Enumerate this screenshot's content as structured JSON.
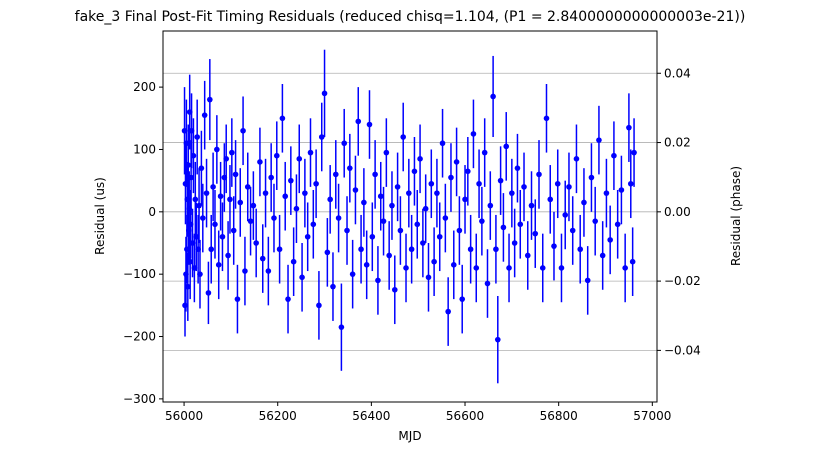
{
  "chart_data": {
    "type": "scatter",
    "title": "fake_3 Final Post-Fit Timing Residuals (reduced chisq=1.104, (P1 = 2.8400000000000003e-21))",
    "xlabel": "MJD",
    "ylabel": "Residual (us)",
    "ylabel_right": "Residual (phase)",
    "xlim": [
      55955,
      57010
    ],
    "ylim": [
      -305,
      290
    ],
    "ylim_right": [
      -0.0549,
      0.0522
    ],
    "xticks": [
      56000,
      56200,
      56400,
      56600,
      56800,
      57000
    ],
    "yticks": [
      -300,
      -200,
      -100,
      0,
      100,
      200
    ],
    "yticks_right": [
      -0.04,
      -0.02,
      0.0,
      0.02,
      0.04
    ],
    "yticks_right_labels": [
      "−0.04",
      "−0.02",
      "0.00",
      "0.02",
      "0.04"
    ],
    "yticks_labels": [
      "−300",
      "−200",
      "−100",
      "0",
      "100",
      "200"
    ],
    "grid": "horizontal at right-axis ticks",
    "marker_color": "#0000ff",
    "series": [
      {
        "points": [
          {
            "x": 56001,
            "y": 130,
            "err": 70
          },
          {
            "x": 56002,
            "y": -150,
            "err": 50
          },
          {
            "x": 56003,
            "y": 45,
            "err": 65
          },
          {
            "x": 56004,
            "y": -100,
            "err": 60
          },
          {
            "x": 56005,
            "y": 110,
            "err": 70
          },
          {
            "x": 56006,
            "y": -60,
            "err": 55
          },
          {
            "x": 56007,
            "y": 20,
            "err": 60
          },
          {
            "x": 56008,
            "y": -120,
            "err": 55
          },
          {
            "x": 56009,
            "y": 75,
            "err": 65
          },
          {
            "x": 56010,
            "y": -30,
            "err": 55
          },
          {
            "x": 56011,
            "y": 5,
            "err": 60
          },
          {
            "x": 56012,
            "y": 160,
            "err": 60
          },
          {
            "x": 56013,
            "y": -80,
            "err": 60
          },
          {
            "x": 56014,
            "y": -20,
            "err": 55
          },
          {
            "x": 56015,
            "y": 55,
            "err": 60
          },
          {
            "x": 56016,
            "y": 130,
            "err": 60
          },
          {
            "x": 56018,
            "y": -50,
            "err": 55
          },
          {
            "x": 56020,
            "y": 90,
            "err": 60
          },
          {
            "x": 56022,
            "y": -90,
            "err": 55
          },
          {
            "x": 56024,
            "y": 20,
            "err": 60
          },
          {
            "x": 56026,
            "y": -40,
            "err": 55
          },
          {
            "x": 56028,
            "y": 120,
            "err": 60
          },
          {
            "x": 56030,
            "y": -60,
            "err": 55
          },
          {
            "x": 56032,
            "y": 10,
            "err": 60
          },
          {
            "x": 56034,
            "y": -100,
            "err": 55
          },
          {
            "x": 56037,
            "y": 70,
            "err": 60
          },
          {
            "x": 56040,
            "y": -10,
            "err": 55
          },
          {
            "x": 56044,
            "y": 155,
            "err": 55
          },
          {
            "x": 56048,
            "y": 30,
            "err": 55
          },
          {
            "x": 56052,
            "y": -130,
            "err": 50
          },
          {
            "x": 56055,
            "y": 180,
            "err": 65
          },
          {
            "x": 56058,
            "y": -60,
            "err": 55
          },
          {
            "x": 56062,
            "y": 40,
            "err": 55
          },
          {
            "x": 56066,
            "y": -20,
            "err": 55
          },
          {
            "x": 56070,
            "y": 100,
            "err": 55
          },
          {
            "x": 56074,
            "y": -85,
            "err": 55
          },
          {
            "x": 56078,
            "y": 25,
            "err": 55
          },
          {
            "x": 56082,
            "y": -40,
            "err": 55
          },
          {
            "x": 56086,
            "y": 55,
            "err": 55
          },
          {
            "x": 56090,
            "y": 85,
            "err": 55
          },
          {
            "x": 56094,
            "y": -70,
            "err": 55
          },
          {
            "x": 56098,
            "y": 20,
            "err": 55
          },
          {
            "x": 56102,
            "y": 95,
            "err": 55
          },
          {
            "x": 56106,
            "y": -30,
            "err": 55
          },
          {
            "x": 56110,
            "y": 60,
            "err": 55
          },
          {
            "x": 56114,
            "y": -140,
            "err": 55
          },
          {
            "x": 56120,
            "y": 15,
            "err": 55
          },
          {
            "x": 56126,
            "y": 130,
            "err": 55
          },
          {
            "x": 56130,
            "y": -95,
            "err": 55
          },
          {
            "x": 56136,
            "y": 40,
            "err": 55
          },
          {
            "x": 56142,
            "y": -15,
            "err": 55
          },
          {
            "x": 56148,
            "y": 10,
            "err": 55
          },
          {
            "x": 56154,
            "y": -50,
            "err": 55
          },
          {
            "x": 56162,
            "y": 80,
            "err": 55
          },
          {
            "x": 56168,
            "y": -75,
            "err": 55
          },
          {
            "x": 56174,
            "y": 30,
            "err": 55
          },
          {
            "x": 56180,
            "y": -95,
            "err": 55
          },
          {
            "x": 56186,
            "y": 55,
            "err": 55
          },
          {
            "x": 56192,
            "y": -10,
            "err": 55
          },
          {
            "x": 56198,
            "y": 90,
            "err": 55
          },
          {
            "x": 56204,
            "y": -60,
            "err": 55
          },
          {
            "x": 56210,
            "y": 150,
            "err": 55
          },
          {
            "x": 56216,
            "y": 25,
            "err": 55
          },
          {
            "x": 56222,
            "y": -140,
            "err": 55
          },
          {
            "x": 56228,
            "y": 50,
            "err": 55
          },
          {
            "x": 56234,
            "y": -80,
            "err": 55
          },
          {
            "x": 56240,
            "y": 5,
            "err": 55
          },
          {
            "x": 56246,
            "y": 85,
            "err": 55
          },
          {
            "x": 56252,
            "y": -105,
            "err": 55
          },
          {
            "x": 56258,
            "y": 30,
            "err": 55
          },
          {
            "x": 56264,
            "y": -40,
            "err": 55
          },
          {
            "x": 56270,
            "y": 95,
            "err": 55
          },
          {
            "x": 56276,
            "y": -20,
            "err": 55
          },
          {
            "x": 56282,
            "y": 45,
            "err": 55
          },
          {
            "x": 56288,
            "y": -150,
            "err": 55
          },
          {
            "x": 56294,
            "y": 120,
            "err": 55
          },
          {
            "x": 56300,
            "y": 190,
            "err": 70
          },
          {
            "x": 56306,
            "y": -65,
            "err": 55
          },
          {
            "x": 56312,
            "y": 20,
            "err": 55
          },
          {
            "x": 56318,
            "y": -120,
            "err": 55
          },
          {
            "x": 56324,
            "y": 60,
            "err": 55
          },
          {
            "x": 56330,
            "y": -10,
            "err": 55
          },
          {
            "x": 56336,
            "y": -185,
            "err": 70
          },
          {
            "x": 56342,
            "y": 110,
            "err": 55
          },
          {
            "x": 56348,
            "y": -30,
            "err": 55
          },
          {
            "x": 56354,
            "y": 70,
            "err": 55
          },
          {
            "x": 56360,
            "y": -100,
            "err": 55
          },
          {
            "x": 56366,
            "y": 35,
            "err": 55
          },
          {
            "x": 56372,
            "y": 145,
            "err": 55
          },
          {
            "x": 56378,
            "y": -60,
            "err": 55
          },
          {
            "x": 56384,
            "y": 15,
            "err": 55
          },
          {
            "x": 56390,
            "y": -85,
            "err": 55
          },
          {
            "x": 56396,
            "y": 140,
            "err": 55
          },
          {
            "x": 56402,
            "y": -40,
            "err": 55
          },
          {
            "x": 56408,
            "y": 60,
            "err": 55
          },
          {
            "x": 56414,
            "y": -110,
            "err": 55
          },
          {
            "x": 56420,
            "y": 25,
            "err": 55
          },
          {
            "x": 56426,
            "y": -15,
            "err": 55
          },
          {
            "x": 56432,
            "y": 95,
            "err": 55
          },
          {
            "x": 56438,
            "y": -70,
            "err": 55
          },
          {
            "x": 56444,
            "y": 10,
            "err": 55
          },
          {
            "x": 56450,
            "y": -125,
            "err": 55
          },
          {
            "x": 56456,
            "y": 40,
            "err": 55
          },
          {
            "x": 56462,
            "y": -30,
            "err": 55
          },
          {
            "x": 56468,
            "y": 120,
            "err": 55
          },
          {
            "x": 56474,
            "y": -90,
            "err": 55
          },
          {
            "x": 56480,
            "y": 30,
            "err": 55
          },
          {
            "x": 56486,
            "y": -60,
            "err": 55
          },
          {
            "x": 56492,
            "y": 65,
            "err": 55
          },
          {
            "x": 56498,
            "y": -20,
            "err": 55
          },
          {
            "x": 56504,
            "y": 85,
            "err": 55
          },
          {
            "x": 56510,
            "y": -50,
            "err": 55
          },
          {
            "x": 56516,
            "y": 5,
            "err": 55
          },
          {
            "x": 56522,
            "y": -105,
            "err": 55
          },
          {
            "x": 56528,
            "y": 45,
            "err": 55
          },
          {
            "x": 56534,
            "y": -80,
            "err": 55
          },
          {
            "x": 56540,
            "y": 30,
            "err": 55
          },
          {
            "x": 56546,
            "y": -40,
            "err": 55
          },
          {
            "x": 56552,
            "y": 110,
            "err": 55
          },
          {
            "x": 56558,
            "y": -10,
            "err": 55
          },
          {
            "x": 56564,
            "y": -160,
            "err": 55
          },
          {
            "x": 56570,
            "y": 55,
            "err": 55
          },
          {
            "x": 56576,
            "y": -85,
            "err": 55
          },
          {
            "x": 56582,
            "y": 80,
            "err": 55
          },
          {
            "x": 56588,
            "y": -30,
            "err": 55
          },
          {
            "x": 56594,
            "y": -140,
            "err": 55
          },
          {
            "x": 56600,
            "y": 20,
            "err": 55
          },
          {
            "x": 56606,
            "y": 65,
            "err": 55
          },
          {
            "x": 56612,
            "y": -60,
            "err": 55
          },
          {
            "x": 56618,
            "y": 125,
            "err": 55
          },
          {
            "x": 56624,
            "y": -90,
            "err": 55
          },
          {
            "x": 56630,
            "y": 45,
            "err": 55
          },
          {
            "x": 56636,
            "y": -15,
            "err": 55
          },
          {
            "x": 56642,
            "y": 95,
            "err": 55
          },
          {
            "x": 56648,
            "y": -115,
            "err": 55
          },
          {
            "x": 56654,
            "y": 10,
            "err": 55
          },
          {
            "x": 56660,
            "y": 185,
            "err": 65
          },
          {
            "x": 56666,
            "y": -60,
            "err": 55
          },
          {
            "x": 56670,
            "y": -205,
            "err": 70
          },
          {
            "x": 56676,
            "y": 50,
            "err": 55
          },
          {
            "x": 56682,
            "y": -25,
            "err": 55
          },
          {
            "x": 56688,
            "y": 105,
            "err": 55
          },
          {
            "x": 56694,
            "y": -90,
            "err": 55
          },
          {
            "x": 56700,
            "y": 30,
            "err": 55
          },
          {
            "x": 56706,
            "y": -50,
            "err": 55
          },
          {
            "x": 56712,
            "y": 70,
            "err": 55
          },
          {
            "x": 56718,
            "y": -20,
            "err": 55
          },
          {
            "x": 56726,
            "y": 40,
            "err": 55
          },
          {
            "x": 56734,
            "y": -70,
            "err": 55
          },
          {
            "x": 56742,
            "y": 10,
            "err": 55
          },
          {
            "x": 56750,
            "y": -35,
            "err": 55
          },
          {
            "x": 56758,
            "y": 60,
            "err": 55
          },
          {
            "x": 56766,
            "y": -90,
            "err": 55
          },
          {
            "x": 56774,
            "y": 150,
            "err": 55
          },
          {
            "x": 56782,
            "y": 20,
            "err": 55
          },
          {
            "x": 56790,
            "y": -55,
            "err": 55
          },
          {
            "x": 56798,
            "y": 45,
            "err": 55
          },
          {
            "x": 56806,
            "y": -90,
            "err": 55
          },
          {
            "x": 56814,
            "y": -5,
            "err": 55
          },
          {
            "x": 56822,
            "y": 40,
            "err": 55
          },
          {
            "x": 56830,
            "y": -30,
            "err": 55
          },
          {
            "x": 56838,
            "y": 85,
            "err": 55
          },
          {
            "x": 56846,
            "y": -60,
            "err": 55
          },
          {
            "x": 56854,
            "y": 15,
            "err": 55
          },
          {
            "x": 56862,
            "y": -110,
            "err": 55
          },
          {
            "x": 56870,
            "y": 55,
            "err": 55
          },
          {
            "x": 56878,
            "y": -15,
            "err": 55
          },
          {
            "x": 56886,
            "y": 115,
            "err": 55
          },
          {
            "x": 56894,
            "y": -70,
            "err": 55
          },
          {
            "x": 56902,
            "y": 30,
            "err": 55
          },
          {
            "x": 56910,
            "y": -45,
            "err": 55
          },
          {
            "x": 56918,
            "y": 90,
            "err": 55
          },
          {
            "x": 56926,
            "y": -20,
            "err": 55
          },
          {
            "x": 56934,
            "y": 35,
            "err": 55
          },
          {
            "x": 56942,
            "y": -90,
            "err": 55
          },
          {
            "x": 56950,
            "y": 135,
            "err": 55
          },
          {
            "x": 56954,
            "y": 45,
            "err": 55
          },
          {
            "x": 56958,
            "y": -80,
            "err": 55
          },
          {
            "x": 56961,
            "y": 95,
            "err": 55
          }
        ]
      }
    ]
  }
}
